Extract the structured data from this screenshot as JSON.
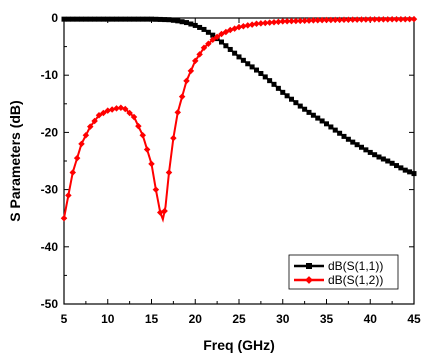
{
  "chart_data": {
    "type": "line",
    "xlabel": "Freq (GHz)",
    "ylabel": "S Parameters (dB)",
    "xlim": [
      5,
      45
    ],
    "ylim": [
      -50,
      0
    ],
    "x_ticks": [
      5,
      10,
      15,
      20,
      25,
      30,
      35,
      40,
      45
    ],
    "y_ticks": [
      0,
      -10,
      -20,
      -30,
      -40,
      -50
    ],
    "x_tick_labels": [
      "5",
      "10",
      "15",
      "20",
      "25",
      "30",
      "35",
      "40",
      "45"
    ],
    "y_tick_labels": [
      "0",
      "-10",
      "-20",
      "-30",
      "-40",
      "-50"
    ],
    "grid": false,
    "legend_position": "bottom-right",
    "series": [
      {
        "name": "dB(S(1,1))",
        "color": "#000000",
        "marker": "square",
        "x": [
          5,
          10,
          15,
          17,
          18,
          19,
          20,
          21,
          22,
          23,
          24,
          25,
          26,
          27,
          28,
          29,
          30,
          31,
          32,
          33,
          34,
          35,
          36,
          37,
          38,
          39,
          40,
          41,
          42,
          43,
          44,
          45
        ],
        "y": [
          -0.2,
          -0.2,
          -0.2,
          -0.3,
          -0.5,
          -0.8,
          -1.3,
          -2.0,
          -3.0,
          -4.2,
          -5.5,
          -6.8,
          -8.0,
          -9.1,
          -10.3,
          -11.6,
          -13.0,
          -14.2,
          -15.4,
          -16.5,
          -17.5,
          -18.5,
          -19.6,
          -20.7,
          -21.7,
          -22.6,
          -23.5,
          -24.3,
          -25.0,
          -25.8,
          -26.6,
          -27.2
        ]
      },
      {
        "name": "dB(S(1,2))",
        "color": "#ff0000",
        "marker": "diamond",
        "x": [
          5,
          6,
          7,
          8,
          9,
          10,
          11,
          11.5,
          12,
          13,
          14,
          15,
          15.5,
          16,
          16.3,
          16.6,
          17,
          17.5,
          18,
          19,
          20,
          21,
          22,
          23,
          24,
          25,
          27,
          30,
          35,
          40,
          45
        ],
        "y": [
          -35,
          -27,
          -22,
          -19,
          -17,
          -16.2,
          -15.8,
          -15.7,
          -15.9,
          -17.3,
          -20.5,
          -25.5,
          -30,
          -34,
          -35.2,
          -33,
          -27,
          -21,
          -16.5,
          -11,
          -7.5,
          -5.2,
          -3.8,
          -2.8,
          -2.1,
          -1.6,
          -1.0,
          -0.6,
          -0.35,
          -0.25,
          -0.2
        ]
      }
    ]
  }
}
